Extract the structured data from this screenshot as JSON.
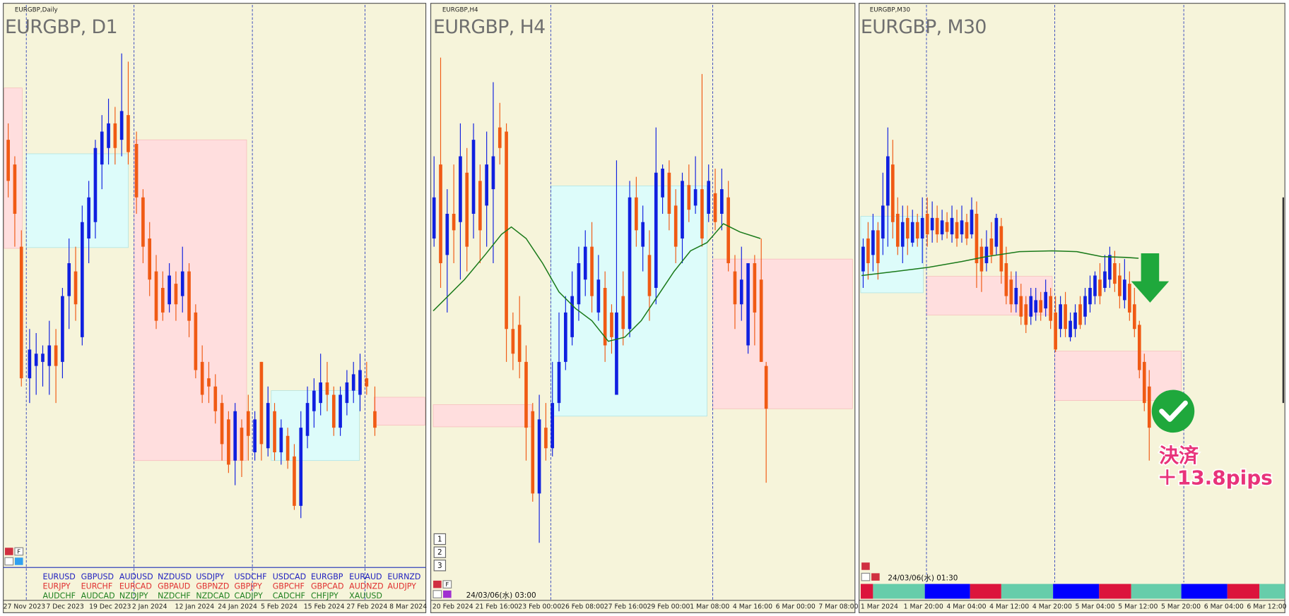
{
  "panels": [
    {
      "small_title": "EURGBP,Daily",
      "title": "EURGBP, D1",
      "toolbar_label": "F",
      "time_labels": [
        "27 Nov 2023",
        "7 Dec 2023",
        "19 Dec 2023",
        "2 Jan 2024",
        "12 Jan 2024",
        "24 Jan 2024",
        "5 Feb 2024",
        "15 Feb 2024",
        "27 Feb 2024",
        "8 Mar 2024"
      ],
      "symbols": [
        [
          "EURUSD",
          "GBPUSD",
          "AUDUSD",
          "NZDUSD",
          "USDJPY",
          "USDCHF",
          "USDCAD",
          "EURGBP",
          "EURAUD",
          "EURNZD"
        ],
        [
          "EURJPY",
          "EURCHF",
          "EURCAD",
          "GBPAUD",
          "GBPNZD",
          "GBPJPY",
          "GBPCHF",
          "GBPCAD",
          "AUDNZD",
          "AUDJPY"
        ],
        [
          "AUDCHF",
          "AUDCAD",
          "NZDJPY",
          "NZDCHF",
          "NZDCAD",
          "CADJPY",
          "CADCHF",
          "CHFJPY",
          "XAUUSD"
        ]
      ]
    },
    {
      "small_title": "EURGBP,H4",
      "title": "EURGBP, H4",
      "toolbar_label": "F",
      "time_labels": [
        "20 Feb 2024",
        "21 Feb 16:00",
        "23 Feb 00:00",
        "26 Feb 08:00",
        "27 Feb 16:00",
        "29 Feb 00:00",
        "1 Mar 08:00",
        "4 Mar 16:00",
        "6 Mar 00:00",
        "7 Mar 08:00"
      ],
      "buttons": [
        "1",
        "2",
        "3"
      ],
      "timestamp": "24/03/06(水) 03:00"
    },
    {
      "small_title": "EURGBP,M30",
      "title": "EURGBP, M30",
      "time_labels": [
        "1 Mar 2024",
        "1 Mar 20:00",
        "4 Mar 04:00",
        "4 Mar 12:00",
        "4 Mar 20:00",
        "5 Mar 04:00",
        "5 Mar 12:00",
        "5 Mar 20:00",
        "6 Mar 04:00",
        "6 Mar 12:00"
      ],
      "timestamp": "24/03/06(水) 01:30",
      "annotation": {
        "action": "決済",
        "result": "＋13.8pips"
      }
    }
  ]
}
